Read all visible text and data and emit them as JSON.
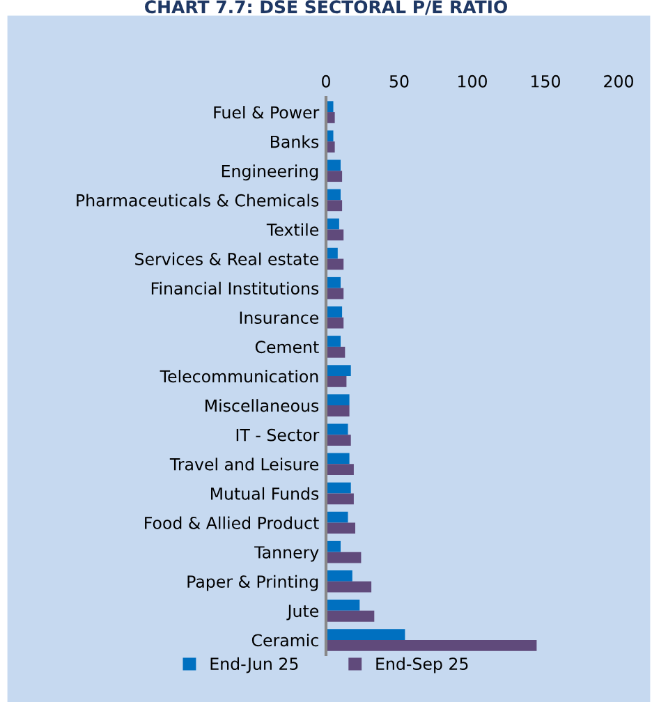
{
  "chart_data": {
    "type": "bar",
    "orientation": "horizontal",
    "title": "CHART 7.7: DSE SECTORAL P/E RATIO",
    "categories": [
      "Fuel & Power",
      "Banks",
      "Engineering",
      "Pharmaceuticals & Chemicals",
      "Textile",
      "Services & Real estate",
      "Financial Institutions",
      "Insurance",
      "Cement",
      "Telecommunication",
      "Miscellaneous",
      "IT - Sector",
      "Travel and Leisure",
      "Mutual Funds",
      "Food & Allied Product",
      "Tannery",
      "Paper & Printing",
      "Jute",
      "Ceramic"
    ],
    "series": [
      {
        "name": "End-Jun 25",
        "color": "#0070c0",
        "values": [
          5,
          5,
          10,
          10,
          9,
          8,
          10,
          11,
          10,
          17,
          16,
          15,
          16,
          17,
          15,
          10,
          18,
          23,
          54
        ]
      },
      {
        "name": "End-Sep 25",
        "color": "#604a7b",
        "values": [
          6,
          6,
          11,
          11,
          12,
          12,
          12,
          12,
          13,
          14,
          16,
          17,
          19,
          19,
          20,
          24,
          31,
          33,
          144
        ]
      }
    ],
    "xlim": [
      0,
      200
    ],
    "xticks": [
      0,
      50,
      100,
      150,
      200
    ],
    "grid": false,
    "legend": "bottom"
  }
}
